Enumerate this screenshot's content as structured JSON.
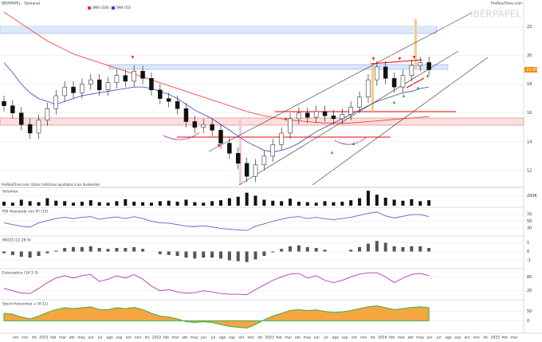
{
  "chart_data": {
    "type": "candlestick",
    "title": "IBERPAPEL - Semanal",
    "watermark": "IBERPAPEL",
    "source": "ProRealTime.com",
    "note": "ProRealTime.com: Datos históricos ajustados a los dividendos",
    "last_price_label": "19.00",
    "ylim": [
      11,
      23.4
    ],
    "yticks": [
      12,
      14,
      16,
      18,
      20,
      22
    ],
    "grid": true,
    "up_color": "#ffffff",
    "down_color": "#111111",
    "open": [
      16.8,
      16.5,
      16.0,
      15.2,
      14.6,
      15.5,
      16.3,
      17.2,
      17.8,
      17.4,
      18.0,
      18.3,
      17.6,
      18.1,
      18.6,
      18.2,
      18.9,
      18.4,
      17.6,
      17.0,
      16.8,
      16.3,
      15.4,
      15.0,
      15.2,
      14.8,
      13.9,
      13.2,
      12.5,
      11.6,
      12.4,
      13.0,
      13.8,
      14.6,
      15.6,
      16.0,
      15.7,
      16.1,
      15.8,
      15.6,
      15.9,
      16.4,
      17.1,
      18.3,
      19.2,
      18.4,
      17.8,
      18.6,
      19.3,
      19.5
    ],
    "high": [
      17.2,
      16.9,
      16.4,
      15.6,
      15.9,
      16.7,
      17.6,
      18.2,
      18.2,
      18.4,
      18.7,
      18.7,
      18.5,
      19.0,
      19.0,
      19.3,
      19.3,
      18.8,
      18.0,
      17.4,
      17.2,
      16.7,
      15.8,
      15.6,
      15.6,
      15.2,
      14.3,
      13.6,
      12.9,
      12.8,
      13.4,
      14.2,
      15.0,
      16.0,
      16.4,
      16.4,
      16.5,
      16.5,
      16.2,
      16.3,
      16.8,
      17.5,
      18.7,
      19.6,
      19.6,
      18.8,
      19.0,
      19.7,
      19.9,
      19.9
    ],
    "low": [
      16.1,
      15.6,
      14.8,
      14.2,
      14.2,
      15.1,
      15.9,
      16.8,
      17.0,
      17.0,
      17.6,
      17.2,
      17.2,
      17.7,
      17.8,
      17.8,
      18.0,
      17.2,
      16.6,
      16.4,
      15.9,
      15.0,
      14.6,
      14.6,
      14.4,
      13.5,
      12.8,
      12.1,
      11.2,
      11.2,
      12.0,
      12.6,
      13.4,
      14.2,
      15.2,
      15.3,
      15.3,
      15.4,
      15.2,
      15.2,
      15.5,
      16.0,
      16.7,
      17.9,
      18.0,
      17.4,
      17.4,
      18.2,
      18.9,
      18.6
    ],
    "close": [
      16.5,
      16.0,
      15.2,
      14.6,
      15.5,
      16.3,
      17.2,
      17.8,
      17.4,
      18.0,
      18.3,
      17.6,
      18.1,
      18.6,
      18.2,
      18.9,
      18.4,
      17.6,
      17.0,
      16.8,
      16.3,
      15.4,
      15.0,
      15.2,
      14.8,
      13.9,
      13.2,
      12.5,
      11.6,
      12.4,
      13.0,
      13.8,
      14.6,
      15.6,
      16.0,
      15.7,
      16.1,
      15.8,
      15.6,
      15.9,
      16.4,
      17.1,
      18.3,
      19.2,
      18.4,
      17.8,
      18.6,
      19.3,
      19.5,
      19.0
    ],
    "series": [
      {
        "name": "SMA (200)",
        "color": "#e53935",
        "values": [
          23.0,
          22.6,
          22.2,
          21.8,
          21.4,
          21.0,
          20.7,
          20.4,
          20.1,
          19.9,
          19.7,
          19.5,
          19.3,
          19.1,
          18.9,
          18.7,
          18.5,
          18.3,
          18.1,
          17.9,
          17.7,
          17.5,
          17.3,
          17.1,
          16.9,
          16.7,
          16.5,
          16.3,
          16.1,
          15.95,
          15.8,
          15.7,
          15.6,
          15.5,
          15.45,
          15.4,
          15.35,
          15.3,
          15.3,
          15.3,
          15.3,
          15.35,
          15.4,
          15.45,
          15.5,
          15.55,
          15.6,
          15.65,
          15.7,
          15.75
        ]
      },
      {
        "name": "SMA (50)",
        "color": "#3f3fbf",
        "values": [
          19.5,
          18.8,
          18.0,
          17.4,
          17.0,
          16.8,
          16.6,
          16.8,
          17.0,
          17.2,
          17.3,
          17.4,
          17.5,
          17.6,
          17.7,
          17.8,
          17.8,
          17.7,
          17.5,
          17.3,
          17.0,
          16.6,
          16.2,
          15.9,
          15.6,
          15.2,
          14.8,
          14.4,
          14.0,
          13.7,
          13.4,
          13.3,
          13.4,
          13.6,
          13.9,
          14.3,
          14.7,
          15.0,
          15.3,
          15.6,
          15.9,
          16.2,
          16.5,
          16.8,
          17.0,
          17.2,
          17.4,
          17.5,
          17.7,
          17.8
        ]
      }
    ],
    "panes": [
      {
        "type": "bar",
        "name": "Volumen",
        "color": "#111111",
        "ylim": [
          0,
          320000
        ],
        "yticks": [
          {
            "value": 200000,
            "label": "200K"
          }
        ],
        "values": [
          80000,
          60000,
          120000,
          90000,
          70000,
          150000,
          100000,
          90000,
          60000,
          80000,
          110000,
          70000,
          60000,
          90000,
          130000,
          80000,
          70000,
          60000,
          90000,
          100000,
          80000,
          120000,
          70000,
          60000,
          90000,
          110000,
          150000,
          180000,
          260000,
          200000,
          120000,
          100000,
          90000,
          140000,
          80000,
          70000,
          60000,
          90000,
          70000,
          80000,
          110000,
          150000,
          300000,
          220000,
          160000,
          120000,
          100000,
          130000,
          90000,
          110000
        ]
      },
      {
        "type": "line",
        "name": "RSI Avanzado con IFI (15)",
        "color": "#6a5acd",
        "ylim": [
          15,
          85
        ],
        "yticks": [
          30,
          50,
          70
        ],
        "values": [
          45,
          40,
          35,
          32,
          45,
          52,
          58,
          62,
          58,
          62,
          64,
          56,
          60,
          63,
          58,
          64,
          58,
          50,
          45,
          44,
          40,
          35,
          34,
          36,
          33,
          28,
          26,
          24,
          22,
          35,
          42,
          50,
          56,
          62,
          64,
          58,
          62,
          57,
          55,
          58,
          62,
          68,
          74,
          78,
          66,
          60,
          65,
          70,
          70,
          64
        ]
      },
      {
        "type": "bar",
        "name": "MACD (12 26 9)",
        "color": "#555555",
        "ylim": [
          -1.5,
          1.5
        ],
        "yticks": [
          -1,
          0,
          1
        ],
        "values": [
          -0.2,
          -0.4,
          -0.6,
          -0.7,
          -0.5,
          -0.2,
          0.1,
          0.4,
          0.5,
          0.5,
          0.6,
          0.4,
          0.3,
          0.4,
          0.4,
          0.5,
          0.3,
          0,
          -0.3,
          -0.4,
          -0.5,
          -0.7,
          -0.8,
          -0.7,
          -0.7,
          -0.8,
          -1.0,
          -1.1,
          -1.2,
          -0.9,
          -0.5,
          -0.1,
          0.3,
          0.6,
          0.7,
          0.5,
          0.4,
          0.2,
          0,
          0,
          0.2,
          0.5,
          0.9,
          1.2,
          1.0,
          0.6,
          0.5,
          0.6,
          0.6,
          0.4
        ]
      },
      {
        "type": "line",
        "name": "Estocástico (14 3 3)",
        "color": "#b03ab0",
        "ylim": [
          -5,
          105
        ],
        "yticks": [
          20,
          80
        ],
        "values": [
          30,
          20,
          10,
          8,
          30,
          55,
          75,
          85,
          75,
          85,
          90,
          60,
          70,
          85,
          75,
          90,
          70,
          40,
          20,
          25,
          15,
          10,
          12,
          20,
          15,
          8,
          5,
          5,
          3,
          25,
          45,
          65,
          80,
          92,
          95,
          75,
          85,
          65,
          55,
          65,
          80,
          92,
          97,
          98,
          80,
          55,
          75,
          90,
          95,
          85
        ]
      },
      {
        "type": "area",
        "name": "Stoch Horizontal + (9 11)",
        "color": "#f4a640",
        "ylim": [
          -50,
          100
        ],
        "yticks": [
          0,
          50
        ],
        "values": [
          40,
          35,
          20,
          10,
          25,
          45,
          60,
          70,
          65,
          70,
          75,
          60,
          60,
          70,
          65,
          72,
          60,
          40,
          25,
          20,
          10,
          -5,
          -10,
          -5,
          -10,
          -20,
          -30,
          -35,
          -40,
          -20,
          5,
          25,
          40,
          55,
          60,
          55,
          58,
          50,
          45,
          48,
          55,
          65,
          75,
          80,
          70,
          60,
          65,
          72,
          75,
          70
        ]
      }
    ],
    "xlabels": [
      "oct",
      "nov",
      "dic",
      "2021",
      "feb",
      "mar",
      "abr",
      "may",
      "jun",
      "jul",
      "ago",
      "sep",
      "oct",
      "nov",
      "dic",
      "2022",
      "feb",
      "mar",
      "abr",
      "may",
      "jun",
      "jul",
      "ago",
      "sep",
      "oct",
      "nov",
      "dic",
      "2023",
      "feb",
      "mar",
      "abr",
      "may",
      "jun",
      "jul",
      "ago",
      "sep",
      "oct",
      "nov",
      "dic",
      "2024",
      "feb",
      "mar",
      "abr",
      "may",
      "jun",
      "jul",
      "ago",
      "sep",
      "oct",
      "nov",
      "dic",
      "2025",
      "feb",
      "mar"
    ]
  }
}
